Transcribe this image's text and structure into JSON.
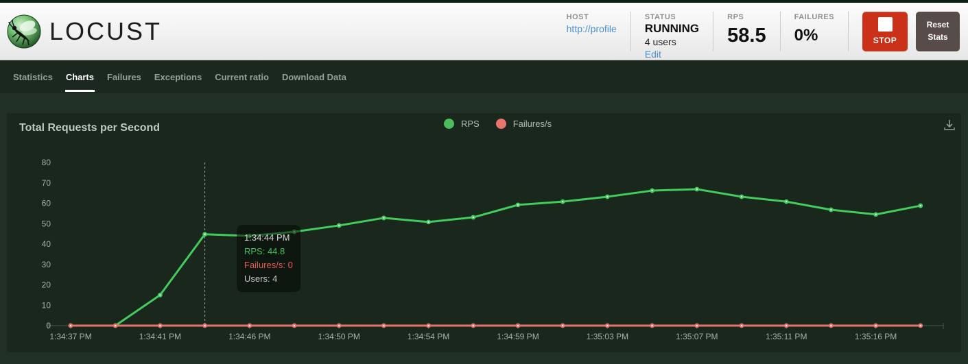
{
  "header": {
    "logo_text": "LOCUST",
    "host_label": "HOST",
    "host_value": "http://profile",
    "status_label": "STATUS",
    "status_value": "RUNNING",
    "users_text": "4 users",
    "edit_label": "Edit",
    "rps_label": "RPS",
    "rps_value": "58.5",
    "failures_label": "FAILURES",
    "failures_value": "0%",
    "stop_button_label": "STOP",
    "reset_button_label": "Reset Stats",
    "stop_color": "#ca3118",
    "reset_color": "#574c49"
  },
  "nav": {
    "tabs": [
      {
        "label": "Statistics",
        "active": false
      },
      {
        "label": "Charts",
        "active": true
      },
      {
        "label": "Failures",
        "active": false
      },
      {
        "label": "Exceptions",
        "active": false
      },
      {
        "label": "Current ratio",
        "active": false
      },
      {
        "label": "Download Data",
        "active": false
      }
    ]
  },
  "chart": {
    "title": "Total Requests per Second",
    "legend": [
      {
        "label": "RPS",
        "color": "#4bbd5e"
      },
      {
        "label": "Failures/s",
        "color": "#e8756b"
      }
    ]
  },
  "tooltip": {
    "title": "1:34:44 PM",
    "lines": [
      {
        "text": "RPS: 44.8",
        "color": "#41c055"
      },
      {
        "text": "Failures/s: 0",
        "color": "#e85c50"
      },
      {
        "text": "Users: 4",
        "color": "#c6c6c6"
      }
    ]
  },
  "chart_data": {
    "type": "line",
    "title": "Total Requests per Second",
    "x": [
      "1:34:37 PM",
      "1:34:39 PM",
      "1:34:41 PM",
      "1:34:44 PM",
      "1:34:46 PM",
      "1:34:48 PM",
      "1:34:50 PM",
      "1:34:52 PM",
      "1:34:54 PM",
      "1:34:57 PM",
      "1:34:59 PM",
      "1:35:01 PM",
      "1:35:03 PM",
      "1:35:05 PM",
      "1:35:07 PM",
      "1:35:09 PM",
      "1:35:11 PM",
      "1:35:13 PM",
      "1:35:16 PM",
      "1:35:18 PM"
    ],
    "x_tick_every": 2,
    "series": [
      {
        "name": "RPS",
        "color": "#43cc5e",
        "values": [
          0,
          0,
          15.0,
          44.8,
          44.0,
          46.0,
          49.1,
          52.8,
          50.8,
          53.1,
          59.2,
          60.8,
          63.2,
          66.2,
          66.9,
          63.2,
          60.8,
          56.8,
          54.5,
          58.8
        ]
      },
      {
        "name": "Failures/s",
        "color": "#e8756b",
        "values": [
          0,
          0,
          0,
          0,
          0,
          0,
          0,
          0,
          0,
          0,
          0,
          0,
          0,
          0,
          0,
          0,
          0,
          0,
          0,
          0
        ]
      }
    ],
    "ylim": [
      0,
      80
    ],
    "yticks": [
      0,
      10,
      20,
      30,
      40,
      50,
      60,
      70,
      80
    ],
    "grid": false,
    "legend_position": "top-center",
    "hover_index": 3,
    "axis_color": "#4b564d",
    "label_color": "#a8b3aa",
    "crosshair_color": "#99a39b"
  }
}
